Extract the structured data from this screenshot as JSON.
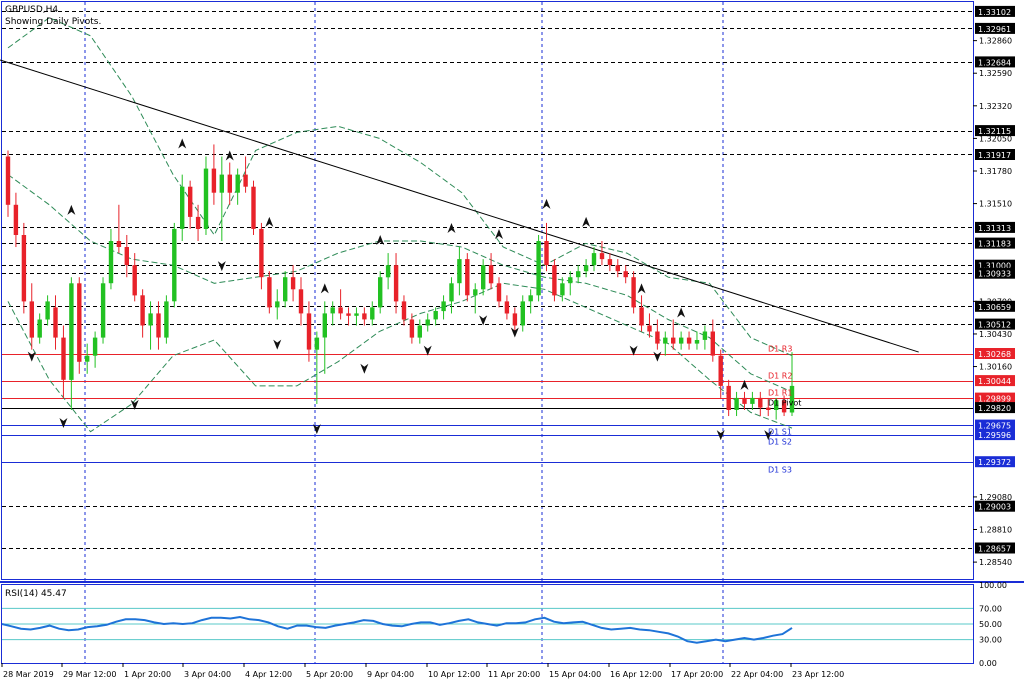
{
  "window": {
    "symbol": "GBPUSD,H4",
    "subtitle": "Showing Daily Pivots."
  },
  "price_axis": {
    "ticks": [
      "1.33102",
      "1.32961",
      "1.32860",
      "1.32684",
      "1.32590",
      "1.32320",
      "1.32115",
      "1.32050",
      "1.31917",
      "1.31780",
      "1.31510",
      "1.31313",
      "1.31183",
      "1.31000",
      "1.30933",
      "1.30700",
      "1.30659",
      "1.30512",
      "1.30430",
      "1.30268",
      "1.30160",
      "1.30044",
      "1.29899",
      "1.29820",
      "1.29675",
      "1.29596",
      "1.29372",
      "1.29080",
      "1.29003",
      "1.28810",
      "1.28657",
      "1.28540"
    ]
  },
  "pivots": [
    {
      "label": "D1 R3",
      "value": 1.30268,
      "color": "#e8222a"
    },
    {
      "label": "D1 R2",
      "value": 1.30044,
      "color": "#e8222a"
    },
    {
      "label": "D1 R1",
      "value": 1.29899,
      "color": "#e8222a"
    },
    {
      "label": "D1 Pivot",
      "value": 1.2982,
      "color": "#000000"
    },
    {
      "label": "D1 S1",
      "value": 1.29675,
      "color": "#1a2dd6"
    },
    {
      "label": "D1 S2",
      "value": 1.29596,
      "color": "#1a2dd6"
    },
    {
      "label": "D1 S3",
      "value": 1.29372,
      "color": "#1a2dd6"
    }
  ],
  "highlighted_levels": [
    "1.33102",
    "1.32961",
    "1.32684",
    "1.32115",
    "1.31917",
    "1.31313",
    "1.31183",
    "1.31000",
    "1.30933",
    "1.30659",
    "1.30512",
    "1.29003",
    "1.28657"
  ],
  "time_axis": {
    "labels": [
      "28 Mar 2019",
      "29 Mar 12:00",
      "1 Apr 20:00",
      "3 Apr 04:00",
      "4 Apr 12:00",
      "5 Apr 20:00",
      "9 Apr 04:00",
      "10 Apr 12:00",
      "11 Apr 20:00",
      "15 Apr 04:00",
      "16 Apr 12:00",
      "17 Apr 20:00",
      "22 Apr 04:00",
      "23 Apr 12:00"
    ]
  },
  "rsi": {
    "label": "RSI(14) 45.47",
    "ticks": [
      "100.00",
      "70.00",
      "50.00",
      "30.00",
      "0.00"
    ]
  },
  "colors": {
    "bull": "#22c122",
    "bear": "#e8222a",
    "pivot_r": "#e8222a",
    "pivot_s": "#1a2dd6",
    "frame": "#1a2dd6",
    "rsi_line": "#1e73d8",
    "rsi_level": "#58c8c8",
    "band": "#2e8b57"
  },
  "chart_data": {
    "type": "candlestick",
    "title": "GBPUSD,H4",
    "ylim": [
      1.284,
      1.3318
    ],
    "candles": [
      [
        1.319,
        1.3195,
        1.314,
        1.315
      ],
      [
        1.315,
        1.316,
        1.3115,
        1.3125
      ],
      [
        1.3125,
        1.3135,
        1.306,
        1.307
      ],
      [
        1.307,
        1.3085,
        1.303,
        1.304
      ],
      [
        1.304,
        1.306,
        1.3035,
        1.3055
      ],
      [
        1.3055,
        1.3075,
        1.305,
        1.307
      ],
      [
        1.3065,
        1.3075,
        1.303,
        1.304
      ],
      [
        1.304,
        1.305,
        1.299,
        1.3005
      ],
      [
        1.3005,
        1.309,
        1.298,
        1.3085
      ],
      [
        1.3085,
        1.309,
        1.301,
        1.302
      ],
      [
        1.302,
        1.3035,
        1.301,
        1.3025
      ],
      [
        1.3025,
        1.3045,
        1.3015,
        1.304
      ],
      [
        1.304,
        1.309,
        1.3035,
        1.3085
      ],
      [
        1.3085,
        1.313,
        1.308,
        1.312
      ],
      [
        1.312,
        1.315,
        1.311,
        1.3115
      ],
      [
        1.3115,
        1.3125,
        1.309,
        1.31
      ],
      [
        1.31,
        1.311,
        1.307,
        1.3075
      ],
      [
        1.3075,
        1.308,
        1.304,
        1.305
      ],
      [
        1.305,
        1.307,
        1.303,
        1.306
      ],
      [
        1.306,
        1.307,
        1.303,
        1.304
      ],
      [
        1.304,
        1.3075,
        1.3035,
        1.307
      ],
      [
        1.307,
        1.3135,
        1.3065,
        1.313
      ],
      [
        1.313,
        1.3175,
        1.312,
        1.3165
      ],
      [
        1.3165,
        1.317,
        1.313,
        1.314
      ],
      [
        1.314,
        1.315,
        1.312,
        1.313
      ],
      [
        1.313,
        1.319,
        1.3125,
        1.318
      ],
      [
        1.318,
        1.32,
        1.315,
        1.316
      ],
      [
        1.316,
        1.319,
        1.312,
        1.3175
      ],
      [
        1.3175,
        1.3185,
        1.315,
        1.316
      ],
      [
        1.316,
        1.318,
        1.315,
        1.3175
      ],
      [
        1.3175,
        1.319,
        1.316,
        1.3165
      ],
      [
        1.3165,
        1.317,
        1.3125,
        1.313
      ],
      [
        1.313,
        1.3135,
        1.308,
        1.309
      ],
      [
        1.309,
        1.3095,
        1.306,
        1.3065
      ],
      [
        1.3065,
        1.308,
        1.3055,
        1.307
      ],
      [
        1.307,
        1.3095,
        1.3065,
        1.309
      ],
      [
        1.309,
        1.31,
        1.307,
        1.308
      ],
      [
        1.308,
        1.309,
        1.305,
        1.306
      ],
      [
        1.306,
        1.307,
        1.302,
        1.303
      ],
      [
        1.303,
        1.3045,
        1.2985,
        1.304
      ],
      [
        1.304,
        1.307,
        1.301,
        1.306
      ],
      [
        1.306,
        1.307,
        1.305,
        1.3065
      ],
      [
        1.3065,
        1.308,
        1.3055,
        1.306
      ],
      [
        1.306,
        1.3065,
        1.305,
        1.3058
      ],
      [
        1.3058,
        1.3065,
        1.305,
        1.306
      ],
      [
        1.306,
        1.3065,
        1.305,
        1.3055
      ],
      [
        1.3055,
        1.307,
        1.305,
        1.3065
      ],
      [
        1.3065,
        1.3095,
        1.306,
        1.309
      ],
      [
        1.309,
        1.311,
        1.308,
        1.31
      ],
      [
        1.31,
        1.311,
        1.306,
        1.307
      ],
      [
        1.307,
        1.3075,
        1.305,
        1.3055
      ],
      [
        1.3055,
        1.306,
        1.3035,
        1.304
      ],
      [
        1.304,
        1.3055,
        1.3035,
        1.305
      ],
      [
        1.305,
        1.306,
        1.3045,
        1.3055
      ],
      [
        1.3055,
        1.3065,
        1.305,
        1.3062
      ],
      [
        1.3062,
        1.3075,
        1.3055,
        1.307
      ],
      [
        1.307,
        1.309,
        1.306,
        1.3085
      ],
      [
        1.3085,
        1.3115,
        1.3075,
        1.3105
      ],
      [
        1.3105,
        1.311,
        1.307,
        1.3075
      ],
      [
        1.3075,
        1.3085,
        1.306,
        1.308
      ],
      [
        1.308,
        1.3105,
        1.3075,
        1.31
      ],
      [
        1.31,
        1.311,
        1.308,
        1.3085
      ],
      [
        1.3085,
        1.309,
        1.3065,
        1.307
      ],
      [
        1.307,
        1.3075,
        1.3055,
        1.306
      ],
      [
        1.306,
        1.3065,
        1.3045,
        1.305
      ],
      [
        1.305,
        1.3075,
        1.3045,
        1.307
      ],
      [
        1.307,
        1.308,
        1.306,
        1.3075
      ],
      [
        1.3075,
        1.3125,
        1.307,
        1.312
      ],
      [
        1.312,
        1.3135,
        1.3095,
        1.31
      ],
      [
        1.31,
        1.3105,
        1.307,
        1.3075
      ],
      [
        1.3075,
        1.309,
        1.307,
        1.3085
      ],
      [
        1.3085,
        1.3095,
        1.3075,
        1.309
      ],
      [
        1.309,
        1.31,
        1.3085,
        1.3095
      ],
      [
        1.3095,
        1.3105,
        1.309,
        1.31
      ],
      [
        1.31,
        1.3115,
        1.3095,
        1.311
      ],
      [
        1.311,
        1.312,
        1.31,
        1.3105
      ],
      [
        1.3105,
        1.311,
        1.3095,
        1.31
      ],
      [
        1.31,
        1.3105,
        1.309,
        1.3095
      ],
      [
        1.3095,
        1.31,
        1.3085,
        1.309
      ],
      [
        1.309,
        1.3095,
        1.306,
        1.3065
      ],
      [
        1.3065,
        1.3075,
        1.3045,
        1.305
      ],
      [
        1.305,
        1.306,
        1.304,
        1.3045
      ],
      [
        1.3045,
        1.3055,
        1.303,
        1.3035
      ],
      [
        1.3035,
        1.3045,
        1.3025,
        1.304
      ],
      [
        1.304,
        1.3055,
        1.303,
        1.3035
      ],
      [
        1.3035,
        1.3045,
        1.303,
        1.304
      ],
      [
        1.304,
        1.3045,
        1.303,
        1.3035
      ],
      [
        1.3035,
        1.3045,
        1.303,
        1.3038
      ],
      [
        1.3038,
        1.305,
        1.303,
        1.3045
      ],
      [
        1.3045,
        1.3055,
        1.302,
        1.3025
      ],
      [
        1.3025,
        1.303,
        1.299,
        1.3
      ],
      [
        1.3,
        1.3005,
        1.2975,
        1.298
      ],
      [
        1.298,
        1.2995,
        1.2975,
        1.299
      ],
      [
        1.299,
        1.2995,
        1.298,
        1.2985
      ],
      [
        1.2985,
        1.2995,
        1.298,
        1.299
      ],
      [
        1.299,
        1.2995,
        1.2975,
        1.2982
      ],
      [
        1.2982,
        1.299,
        1.2975,
        1.298
      ],
      [
        1.298,
        1.299,
        1.2972,
        1.2988
      ],
      [
        1.2988,
        1.2992,
        1.2975,
        1.2978
      ],
      [
        1.2978,
        1.3028,
        1.2975,
        1.3
      ]
    ],
    "band_upper": [
      1.328,
      1.3305,
      1.329,
      1.324,
      1.3175,
      1.3125,
      1.3195,
      1.321,
      1.3215,
      1.3205,
      1.3185,
      1.316,
      1.3115,
      1.31,
      1.3118,
      1.311,
      1.309,
      1.3085,
      1.304,
      1.3025
    ],
    "band_lower": [
      1.307,
      1.3005,
      1.2962,
      1.2985,
      1.3025,
      1.3038,
      1.3,
      1.3,
      1.302,
      1.3045,
      1.306,
      1.307,
      1.3085,
      1.308,
      1.3065,
      1.305,
      1.3035,
      1.3005,
      1.2978,
      1.2965
    ],
    "band_mid": [
      1.3175,
      1.315,
      1.312,
      1.3105,
      1.31,
      1.3085,
      1.309,
      1.3095,
      1.311,
      1.312,
      1.312,
      1.3115,
      1.31,
      1.309,
      1.3085,
      1.3075,
      1.3055,
      1.304,
      1.301,
      1.2995
    ],
    "fractals_up": [
      [
        8,
        1.314
      ],
      [
        22,
        1.3195
      ],
      [
        28,
        1.3185
      ],
      [
        33,
        1.313
      ],
      [
        40,
        1.3075
      ],
      [
        47,
        1.3115
      ],
      [
        56,
        1.3125
      ],
      [
        62,
        1.312
      ],
      [
        68,
        1.3145
      ],
      [
        73,
        1.313
      ],
      [
        80,
        1.3075
      ],
      [
        85,
        1.3055
      ],
      [
        93,
        1.2995
      ]
    ],
    "fractals_down": [
      [
        3,
        1.303
      ],
      [
        7,
        1.2975
      ],
      [
        16,
        1.299
      ],
      [
        27,
        1.3105
      ],
      [
        34,
        1.304
      ],
      [
        39,
        1.297
      ],
      [
        45,
        1.302
      ],
      [
        53,
        1.3035
      ],
      [
        60,
        1.306
      ],
      [
        64,
        1.305
      ],
      [
        79,
        1.3035
      ],
      [
        82,
        1.303
      ],
      [
        90,
        1.2965
      ],
      [
        96,
        1.2965
      ]
    ],
    "trendline": [
      [
        -1,
        1.327
      ],
      [
        115,
        1.3028
      ]
    ],
    "rsi": {
      "values": [
        50,
        47,
        44,
        43,
        45,
        48,
        44,
        42,
        43,
        46,
        47,
        49,
        53,
        56,
        56,
        55,
        52,
        50,
        51,
        50,
        51,
        55,
        58,
        58,
        57,
        59,
        56,
        55,
        52,
        47,
        44,
        48,
        48,
        46,
        45,
        48,
        50,
        52,
        55,
        54,
        50,
        48,
        47,
        50,
        52,
        52,
        49,
        51,
        54,
        56,
        52,
        50,
        48,
        51,
        51,
        52,
        56,
        58,
        53,
        51,
        52,
        53,
        49,
        45,
        43,
        44,
        45,
        43,
        42,
        40,
        38,
        34,
        28,
        26,
        28,
        30,
        28,
        30,
        32,
        30,
        32,
        35,
        37,
        45
      ]
    },
    "xlabels": [
      "28 Mar 2019",
      "29 Mar 12:00",
      "1 Apr 20:00",
      "3 Apr 04:00",
      "4 Apr 12:00",
      "5 Apr 20:00",
      "9 Apr 04:00",
      "10 Apr 12:00",
      "11 Apr 20:00",
      "15 Apr 04:00",
      "16 Apr 12:00",
      "17 Apr 20:00",
      "22 Apr 04:00",
      "23 Apr 12:00"
    ]
  }
}
